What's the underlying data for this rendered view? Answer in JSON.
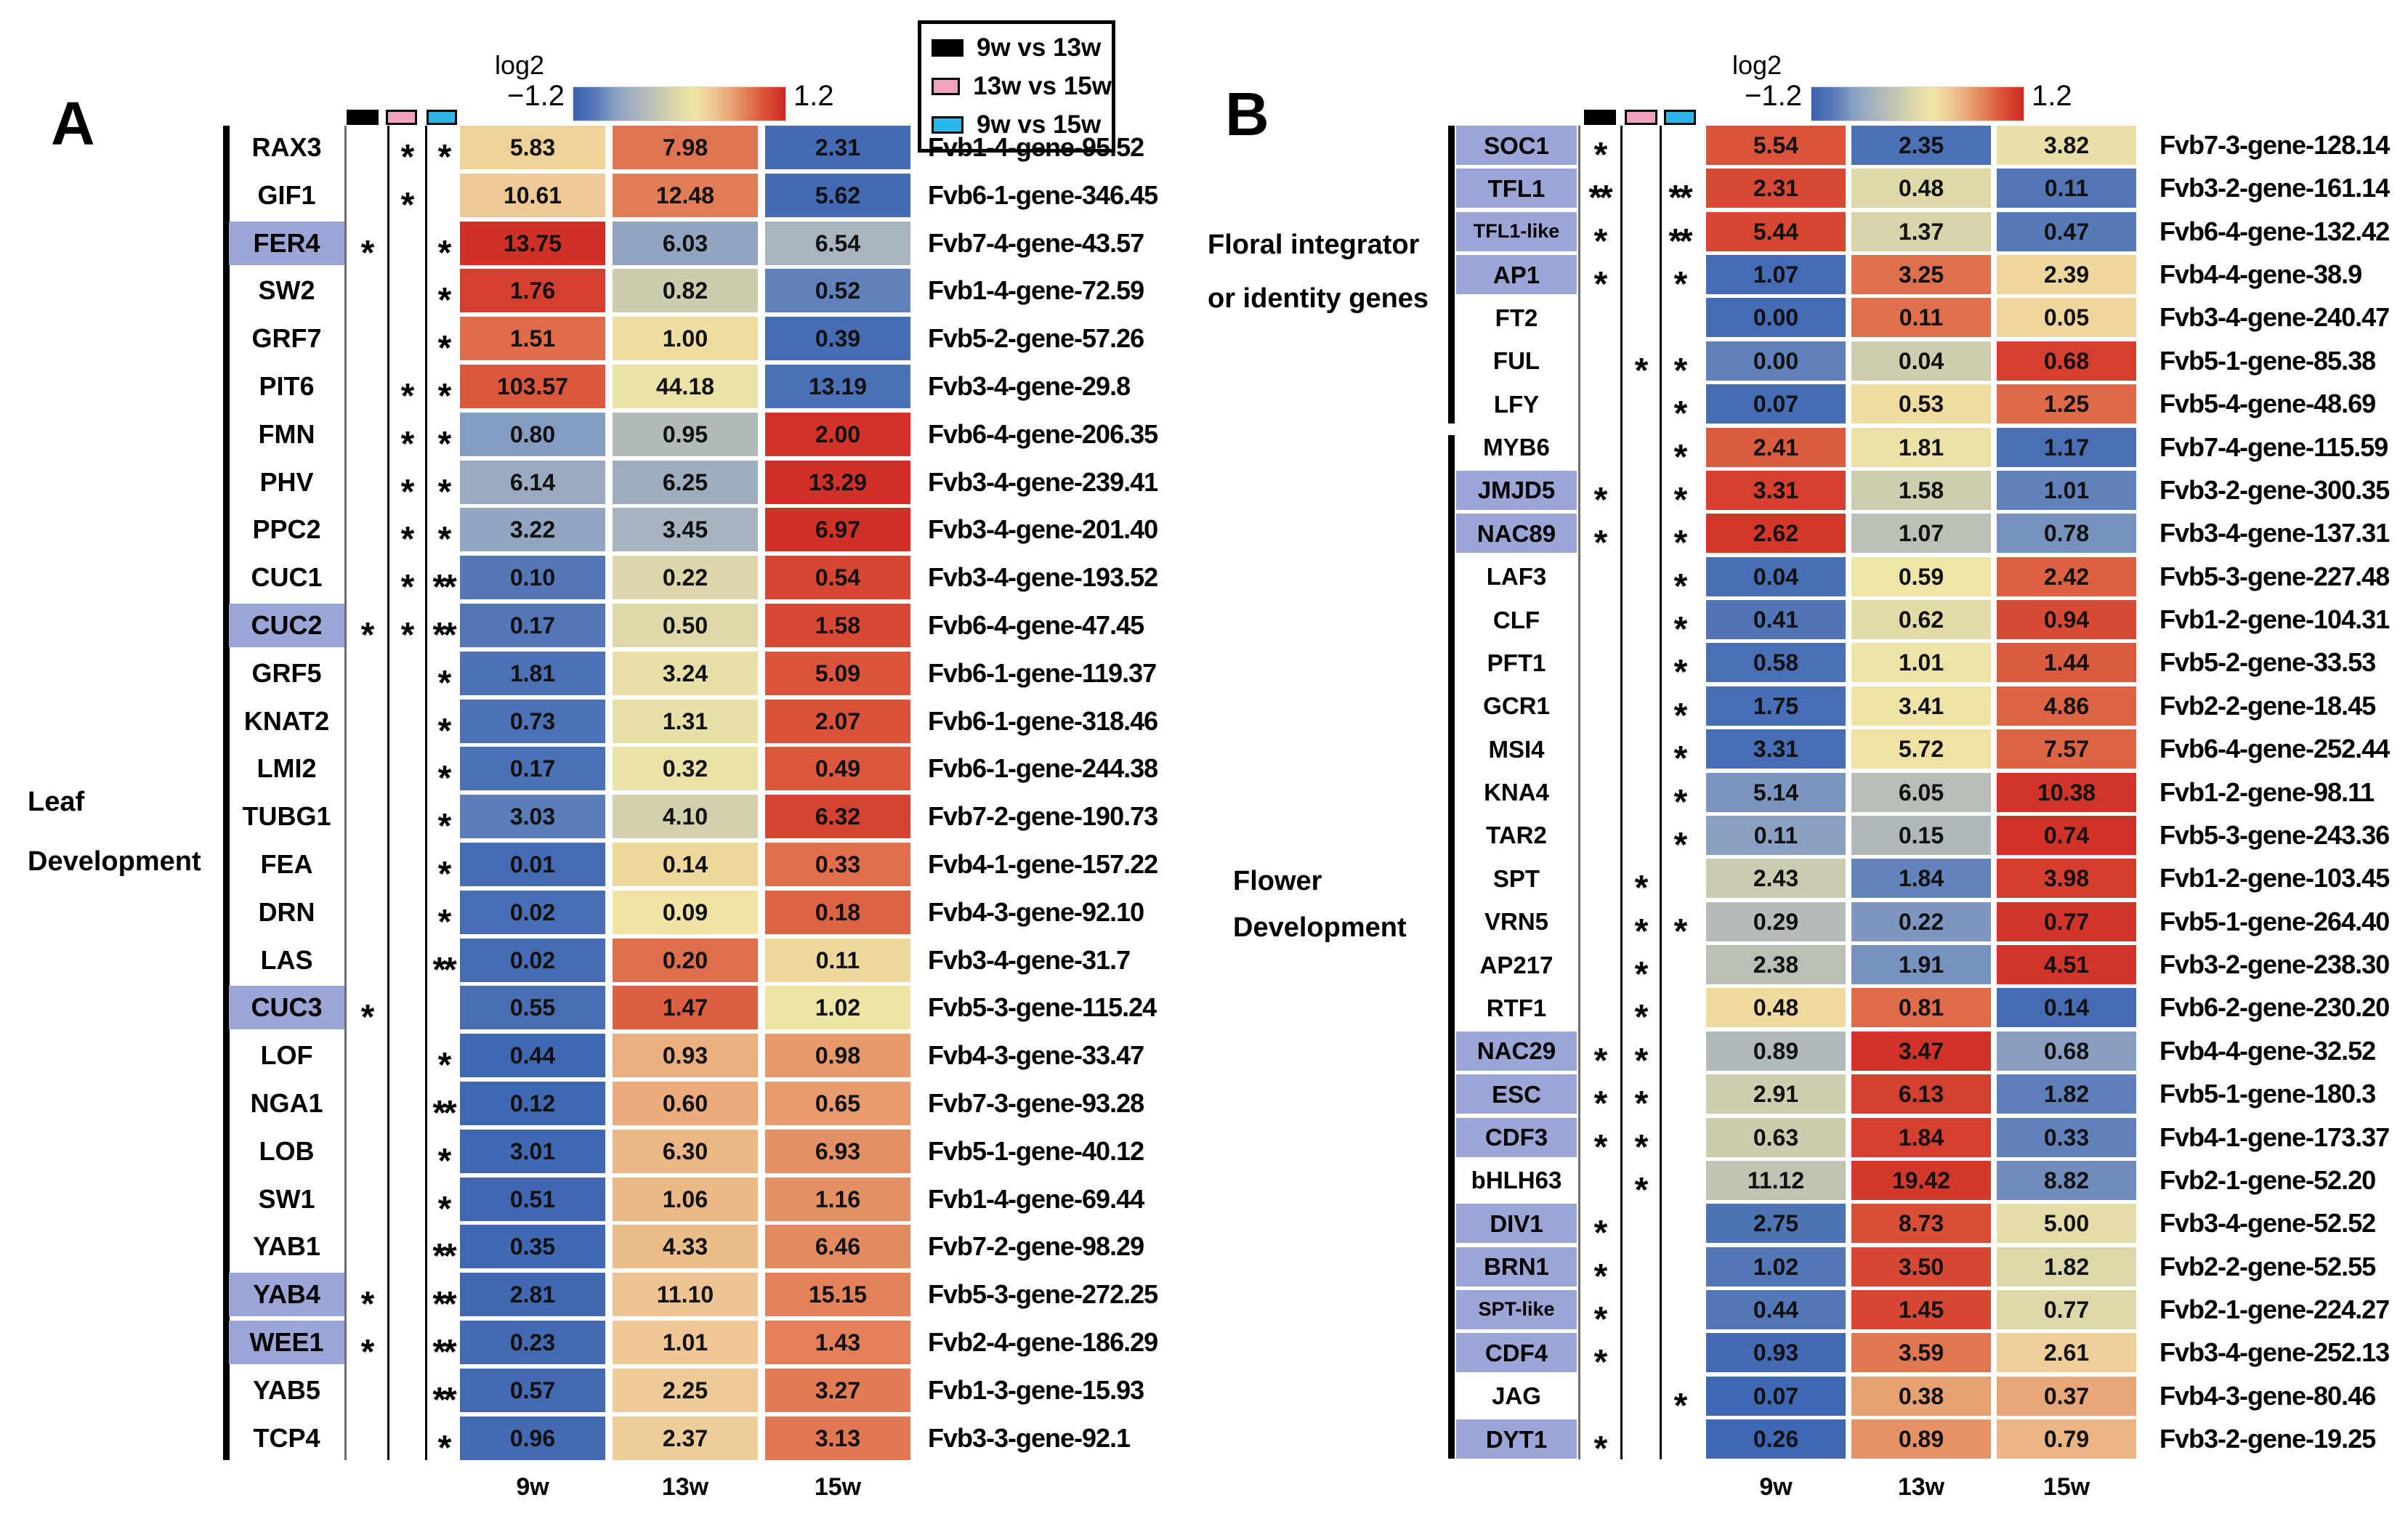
{
  "legend": {
    "items": [
      {
        "label": "9w vs 13w",
        "color": "#000000"
      },
      {
        "label": "13w vs 15w",
        "color": "#F2A2C0"
      },
      {
        "label": "9w vs 15w",
        "color": "#29B6E8"
      }
    ]
  },
  "highlight_color": "#9CA6D6",
  "colormap": {
    "stops": [
      [
        0,
        "#3B63B0"
      ],
      [
        0.1,
        "#5578B8"
      ],
      [
        0.2,
        "#8AA0C2"
      ],
      [
        0.3,
        "#A9B4BE"
      ],
      [
        0.4,
        "#C3C6B2"
      ],
      [
        0.5,
        "#E2DCA8"
      ],
      [
        0.58,
        "#EFE5A6"
      ],
      [
        0.66,
        "#EEC794"
      ],
      [
        0.74,
        "#E9A476"
      ],
      [
        0.82,
        "#E27C55"
      ],
      [
        0.9,
        "#D9533A"
      ],
      [
        1,
        "#CE2822"
      ]
    ]
  },
  "chart_data": [
    {
      "type": "heatmap",
      "panel": "A",
      "columns": [
        "9w",
        "13w",
        "15w"
      ],
      "colorbar": {
        "title": "log2",
        "min_label": "−1.2",
        "max_label": "1.2",
        "min": -1.2,
        "max": 1.2
      },
      "group_labels": [
        {
          "lines": [
            "Leaf",
            "Development"
          ],
          "row_start": 0,
          "row_end": 27
        }
      ],
      "rows": [
        {
          "gene": "RAX3",
          "highlight": false,
          "sig": [
            "",
            "*",
            "*"
          ],
          "values": [
            5.83,
            7.98,
            2.31
          ],
          "gene_id": "Fvb1-4-gene-95.52"
        },
        {
          "gene": "GIF1",
          "highlight": false,
          "sig": [
            "",
            "*",
            ""
          ],
          "values": [
            10.61,
            12.48,
            5.62
          ],
          "gene_id": "Fvb6-1-gene-346.45"
        },
        {
          "gene": "FER4",
          "highlight": true,
          "sig": [
            "*",
            "",
            "*"
          ],
          "values": [
            13.75,
            6.03,
            6.54
          ],
          "gene_id": "Fvb7-4-gene-43.57"
        },
        {
          "gene": "SW2",
          "highlight": false,
          "sig": [
            "",
            "",
            "*"
          ],
          "values": [
            1.76,
            0.82,
            0.52
          ],
          "gene_id": "Fvb1-4-gene-72.59"
        },
        {
          "gene": "GRF7",
          "highlight": false,
          "sig": [
            "",
            "",
            "*"
          ],
          "values": [
            1.51,
            1.0,
            0.39
          ],
          "gene_id": "Fvb5-2-gene-57.26"
        },
        {
          "gene": "PIT6",
          "highlight": false,
          "sig": [
            "",
            "*",
            "*"
          ],
          "values": [
            103.57,
            44.18,
            13.19
          ],
          "gene_id": "Fvb3-4-gene-29.8"
        },
        {
          "gene": "FMN",
          "highlight": false,
          "sig": [
            "",
            "*",
            "*"
          ],
          "values": [
            0.8,
            0.95,
            2.0
          ],
          "gene_id": "Fvb6-4-gene-206.35"
        },
        {
          "gene": "PHV",
          "highlight": false,
          "sig": [
            "",
            "*",
            "*"
          ],
          "values": [
            6.14,
            6.25,
            13.29
          ],
          "gene_id": "Fvb3-4-gene-239.41"
        },
        {
          "gene": "PPC2",
          "highlight": false,
          "sig": [
            "",
            "*",
            "*"
          ],
          "values": [
            3.22,
            3.45,
            6.97
          ],
          "gene_id": "Fvb3-4-gene-201.40"
        },
        {
          "gene": "CUC1",
          "highlight": false,
          "sig": [
            "",
            "*",
            "**"
          ],
          "values": [
            0.1,
            0.22,
            0.54
          ],
          "gene_id": "Fvb3-4-gene-193.52"
        },
        {
          "gene": "CUC2",
          "highlight": true,
          "sig": [
            "*",
            "*",
            "**"
          ],
          "values": [
            0.17,
            0.5,
            1.58
          ],
          "gene_id": "Fvb6-4-gene-47.45"
        },
        {
          "gene": "GRF5",
          "highlight": false,
          "sig": [
            "",
            "",
            "*"
          ],
          "values": [
            1.81,
            3.24,
            5.09
          ],
          "gene_id": "Fvb6-1-gene-119.37"
        },
        {
          "gene": "KNAT2",
          "highlight": false,
          "sig": [
            "",
            "",
            "*"
          ],
          "values": [
            0.73,
            1.31,
            2.07
          ],
          "gene_id": "Fvb6-1-gene-318.46"
        },
        {
          "gene": "LMI2",
          "highlight": false,
          "sig": [
            "",
            "",
            "*"
          ],
          "values": [
            0.17,
            0.32,
            0.49
          ],
          "gene_id": "Fvb6-1-gene-244.38"
        },
        {
          "gene": "TUBG1",
          "highlight": false,
          "sig": [
            "",
            "",
            "*"
          ],
          "values": [
            3.03,
            4.1,
            6.32
          ],
          "gene_id": "Fvb7-2-gene-190.73"
        },
        {
          "gene": "FEA",
          "highlight": false,
          "sig": [
            "",
            "",
            "*"
          ],
          "values": [
            0.01,
            0.14,
            0.33
          ],
          "gene_id": "Fvb4-1-gene-157.22"
        },
        {
          "gene": "DRN",
          "highlight": false,
          "sig": [
            "",
            "",
            "*"
          ],
          "values": [
            0.02,
            0.09,
            0.18
          ],
          "gene_id": "Fvb4-3-gene-92.10"
        },
        {
          "gene": "LAS",
          "highlight": false,
          "sig": [
            "",
            "",
            "**"
          ],
          "values": [
            0.02,
            0.2,
            0.11
          ],
          "gene_id": "Fvb3-4-gene-31.7"
        },
        {
          "gene": "CUC3",
          "highlight": true,
          "sig": [
            "*",
            "",
            ""
          ],
          "values": [
            0.55,
            1.47,
            1.02
          ],
          "gene_id": "Fvb5-3-gene-115.24"
        },
        {
          "gene": "LOF",
          "highlight": false,
          "sig": [
            "",
            "",
            "*"
          ],
          "values": [
            0.44,
            0.93,
            0.98
          ],
          "gene_id": "Fvb4-3-gene-33.47"
        },
        {
          "gene": "NGA1",
          "highlight": false,
          "sig": [
            "",
            "",
            "**"
          ],
          "values": [
            0.12,
            0.6,
            0.65
          ],
          "gene_id": "Fvb7-3-gene-93.28"
        },
        {
          "gene": "LOB",
          "highlight": false,
          "sig": [
            "",
            "",
            "*"
          ],
          "values": [
            3.01,
            6.3,
            6.93
          ],
          "gene_id": "Fvb5-1-gene-40.12"
        },
        {
          "gene": "SW1",
          "highlight": false,
          "sig": [
            "",
            "",
            "*"
          ],
          "values": [
            0.51,
            1.06,
            1.16
          ],
          "gene_id": "Fvb1-4-gene-69.44"
        },
        {
          "gene": "YAB1",
          "highlight": false,
          "sig": [
            "",
            "",
            "**"
          ],
          "values": [
            0.35,
            4.33,
            6.46
          ],
          "gene_id": "Fvb7-2-gene-98.29"
        },
        {
          "gene": "YAB4",
          "highlight": true,
          "sig": [
            "*",
            "",
            "**"
          ],
          "values": [
            2.81,
            11.1,
            15.15
          ],
          "gene_id": "Fvb5-3-gene-272.25"
        },
        {
          "gene": "WEE1",
          "highlight": true,
          "sig": [
            "*",
            "",
            "**"
          ],
          "values": [
            0.23,
            1.01,
            1.43
          ],
          "gene_id": "Fvb2-4-gene-186.29"
        },
        {
          "gene": "YAB5",
          "highlight": false,
          "sig": [
            "",
            "",
            "**"
          ],
          "values": [
            0.57,
            2.25,
            3.27
          ],
          "gene_id": "Fvb1-3-gene-15.93"
        },
        {
          "gene": "TCP4",
          "highlight": false,
          "sig": [
            "",
            "",
            "*"
          ],
          "values": [
            0.96,
            2.37,
            3.13
          ],
          "gene_id": "Fvb3-3-gene-92.1"
        }
      ]
    },
    {
      "type": "heatmap",
      "panel": "B",
      "columns": [
        "9w",
        "13w",
        "15w"
      ],
      "colorbar": {
        "title": "log2",
        "min_label": "−1.2",
        "max_label": "1.2",
        "min": -1.2,
        "max": 1.2
      },
      "group_labels": [
        {
          "lines": [
            "Floral integrator",
            "or identity genes"
          ],
          "row_start": 0,
          "row_end": 6
        },
        {
          "lines": [
            "Flower",
            "Development"
          ],
          "row_start": 7,
          "row_end": 30
        }
      ],
      "rows": [
        {
          "gene": "SOC1",
          "highlight": true,
          "sig": [
            "*",
            "",
            ""
          ],
          "values": [
            5.54,
            2.35,
            3.82
          ],
          "gene_id": "Fvb7-3-gene-128.14"
        },
        {
          "gene": "TFL1",
          "highlight": true,
          "sig": [
            "**",
            "",
            "**"
          ],
          "values": [
            2.31,
            0.48,
            0.11
          ],
          "gene_id": "Fvb3-2-gene-161.14"
        },
        {
          "gene": "TFL1-like",
          "highlight": true,
          "sig": [
            "*",
            "",
            "**"
          ],
          "values": [
            5.44,
            1.37,
            0.47
          ],
          "gene_id": "Fvb6-4-gene-132.42"
        },
        {
          "gene": "AP1",
          "highlight": true,
          "sig": [
            "*",
            "",
            "*"
          ],
          "values": [
            1.07,
            3.25,
            2.39
          ],
          "gene_id": "Fvb4-4-gene-38.9"
        },
        {
          "gene": "FT2",
          "highlight": false,
          "sig": [
            "",
            "",
            ""
          ],
          "values": [
            0.0,
            0.11,
            0.05
          ],
          "gene_id": "Fvb3-4-gene-240.47"
        },
        {
          "gene": "FUL",
          "highlight": false,
          "sig": [
            "",
            "*",
            "*"
          ],
          "values": [
            0.0,
            0.04,
            0.68
          ],
          "gene_id": "Fvb5-1-gene-85.38"
        },
        {
          "gene": "LFY",
          "highlight": false,
          "sig": [
            "",
            "",
            "*"
          ],
          "values": [
            0.07,
            0.53,
            1.25
          ],
          "gene_id": "Fvb5-4-gene-48.69"
        },
        {
          "gene": "MYB6",
          "highlight": false,
          "sig": [
            "",
            "",
            "*"
          ],
          "values": [
            2.41,
            1.81,
            1.17
          ],
          "gene_id": "Fvb7-4-gene-115.59"
        },
        {
          "gene": "JMJD5",
          "highlight": true,
          "sig": [
            "*",
            "",
            "*"
          ],
          "values": [
            3.31,
            1.58,
            1.01
          ],
          "gene_id": "Fvb3-2-gene-300.35"
        },
        {
          "gene": "NAC89",
          "highlight": true,
          "sig": [
            "*",
            "",
            "*"
          ],
          "values": [
            2.62,
            1.07,
            0.78
          ],
          "gene_id": "Fvb3-4-gene-137.31"
        },
        {
          "gene": "LAF3",
          "highlight": false,
          "sig": [
            "",
            "",
            "*"
          ],
          "values": [
            0.04,
            0.59,
            2.42
          ],
          "gene_id": "Fvb5-3-gene-227.48"
        },
        {
          "gene": "CLF",
          "highlight": false,
          "sig": [
            "",
            "",
            "*"
          ],
          "values": [
            0.41,
            0.62,
            0.94
          ],
          "gene_id": "Fvb1-2-gene-104.31"
        },
        {
          "gene": "PFT1",
          "highlight": false,
          "sig": [
            "",
            "",
            "*"
          ],
          "values": [
            0.58,
            1.01,
            1.44
          ],
          "gene_id": "Fvb5-2-gene-33.53"
        },
        {
          "gene": "GCR1",
          "highlight": false,
          "sig": [
            "",
            "",
            "*"
          ],
          "values": [
            1.75,
            3.41,
            4.86
          ],
          "gene_id": "Fvb2-2-gene-18.45"
        },
        {
          "gene": "MSI4",
          "highlight": false,
          "sig": [
            "",
            "",
            "*"
          ],
          "values": [
            3.31,
            5.72,
            7.57
          ],
          "gene_id": "Fvb6-4-gene-252.44"
        },
        {
          "gene": "KNA4",
          "highlight": false,
          "sig": [
            "",
            "",
            "*"
          ],
          "values": [
            5.14,
            6.05,
            10.38
          ],
          "gene_id": "Fvb1-2-gene-98.11"
        },
        {
          "gene": "TAR2",
          "highlight": false,
          "sig": [
            "",
            "",
            "*"
          ],
          "values": [
            0.11,
            0.15,
            0.74
          ],
          "gene_id": "Fvb5-3-gene-243.36"
        },
        {
          "gene": "SPT",
          "highlight": false,
          "sig": [
            "",
            "*",
            ""
          ],
          "values": [
            2.43,
            1.84,
            3.98
          ],
          "gene_id": "Fvb1-2-gene-103.45"
        },
        {
          "gene": "VRN5",
          "highlight": false,
          "sig": [
            "",
            "*",
            "*"
          ],
          "values": [
            0.29,
            0.22,
            0.77
          ],
          "gene_id": "Fvb5-1-gene-264.40"
        },
        {
          "gene": "AP217",
          "highlight": false,
          "sig": [
            "",
            "*",
            ""
          ],
          "values": [
            2.38,
            1.91,
            4.51
          ],
          "gene_id": "Fvb3-2-gene-238.30"
        },
        {
          "gene": "RTF1",
          "highlight": false,
          "sig": [
            "",
            "*",
            ""
          ],
          "values": [
            0.48,
            0.81,
            0.14
          ],
          "gene_id": "Fvb6-2-gene-230.20"
        },
        {
          "gene": "NAC29",
          "highlight": true,
          "sig": [
            "*",
            "*",
            ""
          ],
          "values": [
            0.89,
            3.47,
            0.68
          ],
          "gene_id": "Fvb4-4-gene-32.52"
        },
        {
          "gene": "ESC",
          "highlight": true,
          "sig": [
            "*",
            "*",
            ""
          ],
          "values": [
            2.91,
            6.13,
            1.82
          ],
          "gene_id": "Fvb5-1-gene-180.3"
        },
        {
          "gene": "CDF3",
          "highlight": true,
          "sig": [
            "*",
            "*",
            ""
          ],
          "values": [
            0.63,
            1.84,
            0.33
          ],
          "gene_id": "Fvb4-1-gene-173.37"
        },
        {
          "gene": "bHLH63",
          "highlight": false,
          "sig": [
            "",
            "*",
            ""
          ],
          "values": [
            11.12,
            19.42,
            8.82
          ],
          "gene_id": "Fvb2-1-gene-52.20"
        },
        {
          "gene": "DIV1",
          "highlight": true,
          "sig": [
            "*",
            "",
            ""
          ],
          "values": [
            2.75,
            8.73,
            5.0
          ],
          "gene_id": "Fvb3-4-gene-52.52"
        },
        {
          "gene": "BRN1",
          "highlight": true,
          "sig": [
            "*",
            "",
            ""
          ],
          "values": [
            1.02,
            3.5,
            1.82
          ],
          "gene_id": "Fvb2-2-gene-52.55"
        },
        {
          "gene": "SPT-like",
          "highlight": true,
          "sig": [
            "*",
            "",
            ""
          ],
          "values": [
            0.44,
            1.45,
            0.77
          ],
          "gene_id": "Fvb2-1-gene-224.27"
        },
        {
          "gene": "CDF4",
          "highlight": true,
          "sig": [
            "*",
            "",
            ""
          ],
          "values": [
            0.93,
            3.59,
            2.61
          ],
          "gene_id": "Fvb3-4-gene-252.13"
        },
        {
          "gene": "JAG",
          "highlight": false,
          "sig": [
            "",
            "",
            "*"
          ],
          "values": [
            0.07,
            0.38,
            0.37
          ],
          "gene_id": "Fvb4-3-gene-80.46"
        },
        {
          "gene": "DYT1",
          "highlight": true,
          "sig": [
            "*",
            "",
            ""
          ],
          "values": [
            0.26,
            0.89,
            0.79
          ],
          "gene_id": "Fvb3-2-gene-19.25"
        }
      ]
    }
  ]
}
